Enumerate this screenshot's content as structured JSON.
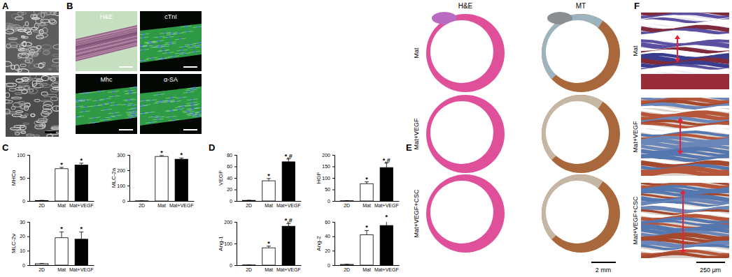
{
  "chart_data": [
    {
      "type": "bar",
      "y_label": "MHCα",
      "categories": [
        "2D",
        "Mat",
        "Mat+VEGF"
      ],
      "values": [
        1,
        70,
        78
      ],
      "errors": [
        0.3,
        3,
        4
      ],
      "significance": [
        null,
        "*",
        "*"
      ],
      "colors": [
        "#ffffff",
        "#ffffff",
        "#000000"
      ],
      "ylim": [
        0,
        100
      ],
      "yticks": [
        0,
        50,
        100
      ]
    },
    {
      "type": "bar",
      "y_label": "MLC-2a",
      "categories": [
        "2D",
        "Mat",
        "Mat+VEGF"
      ],
      "values": [
        1,
        290,
        272
      ],
      "errors": [
        0.3,
        6,
        8
      ],
      "significance": [
        null,
        "*",
        "*"
      ],
      "colors": [
        "#ffffff",
        "#ffffff",
        "#000000"
      ],
      "ylim": [
        0,
        300
      ],
      "yticks": [
        0,
        100,
        200,
        300
      ]
    },
    {
      "type": "bar",
      "y_label": "MLC-2v",
      "categories": [
        "2D",
        "Mat",
        "Mat+VEGF"
      ],
      "values": [
        1,
        19,
        18
      ],
      "errors": [
        0.2,
        4,
        5
      ],
      "significance": [
        null,
        "*",
        "*"
      ],
      "colors": [
        "#ffffff",
        "#ffffff",
        "#000000"
      ],
      "ylim": [
        0,
        30
      ],
      "yticks": [
        0,
        10,
        20,
        30
      ]
    },
    {
      "type": "bar",
      "y_label": "VEGF",
      "categories": [
        "2D",
        "Mat",
        "Mat+VEGF"
      ],
      "values": [
        1,
        35,
        68
      ],
      "errors": [
        0.2,
        4,
        5
      ],
      "significance": [
        null,
        "*",
        "*,#"
      ],
      "colors": [
        "#ffffff",
        "#ffffff",
        "#000000"
      ],
      "ylim": [
        0,
        80
      ],
      "yticks": [
        0,
        20,
        40,
        60,
        80
      ]
    },
    {
      "type": "bar",
      "y_label": "HGF",
      "categories": [
        "2D",
        "Mat",
        "Mat+VEGF"
      ],
      "values": [
        1,
        75,
        145
      ],
      "errors": [
        0.3,
        8,
        20
      ],
      "significance": [
        null,
        "*",
        "*,#"
      ],
      "colors": [
        "#ffffff",
        "#ffffff",
        "#000000"
      ],
      "ylim": [
        0,
        200
      ],
      "yticks": [
        0,
        50,
        100,
        150,
        200
      ]
    },
    {
      "type": "bar",
      "y_label": "Ang-1",
      "categories": [
        "2D",
        "Mat",
        "Mat+VEGF"
      ],
      "values": [
        1,
        80,
        180
      ],
      "errors": [
        0.3,
        8,
        12
      ],
      "significance": [
        null,
        "*",
        "*,#"
      ],
      "colors": [
        "#ffffff",
        "#ffffff",
        "#000000"
      ],
      "ylim": [
        0,
        200
      ],
      "yticks": [
        0,
        100,
        200
      ]
    },
    {
      "type": "bar",
      "y_label": "Ang-2",
      "categories": [
        "2D",
        "Mat",
        "Mat+VEGF"
      ],
      "values": [
        1,
        42,
        55
      ],
      "errors": [
        0.3,
        6,
        8
      ],
      "significance": [
        null,
        "*",
        "*"
      ],
      "colors": [
        "#ffffff",
        "#ffffff",
        "#000000"
      ],
      "ylim": [
        0,
        60
      ],
      "yticks": [
        0,
        20,
        40,
        60
      ]
    }
  ],
  "panels": {
    "labels": [
      "A",
      "B",
      "C",
      "D",
      "E",
      "F"
    ]
  },
  "panel_B": {
    "image_labels": [
      "H&E",
      "cTnI",
      "Mhc",
      "α-SA"
    ]
  },
  "panel_E": {
    "columns": [
      "H&E",
      "MT"
    ],
    "rows": [
      "Mat",
      "Mat+VEGF",
      "Mat+VEGF+CSC"
    ],
    "scale_bar": "2 mm"
  },
  "panel_F": {
    "rows": [
      "Mat",
      "Mat+VEGF",
      "Mat+VEGF+CSC"
    ],
    "scale_bar": "250 μm"
  }
}
